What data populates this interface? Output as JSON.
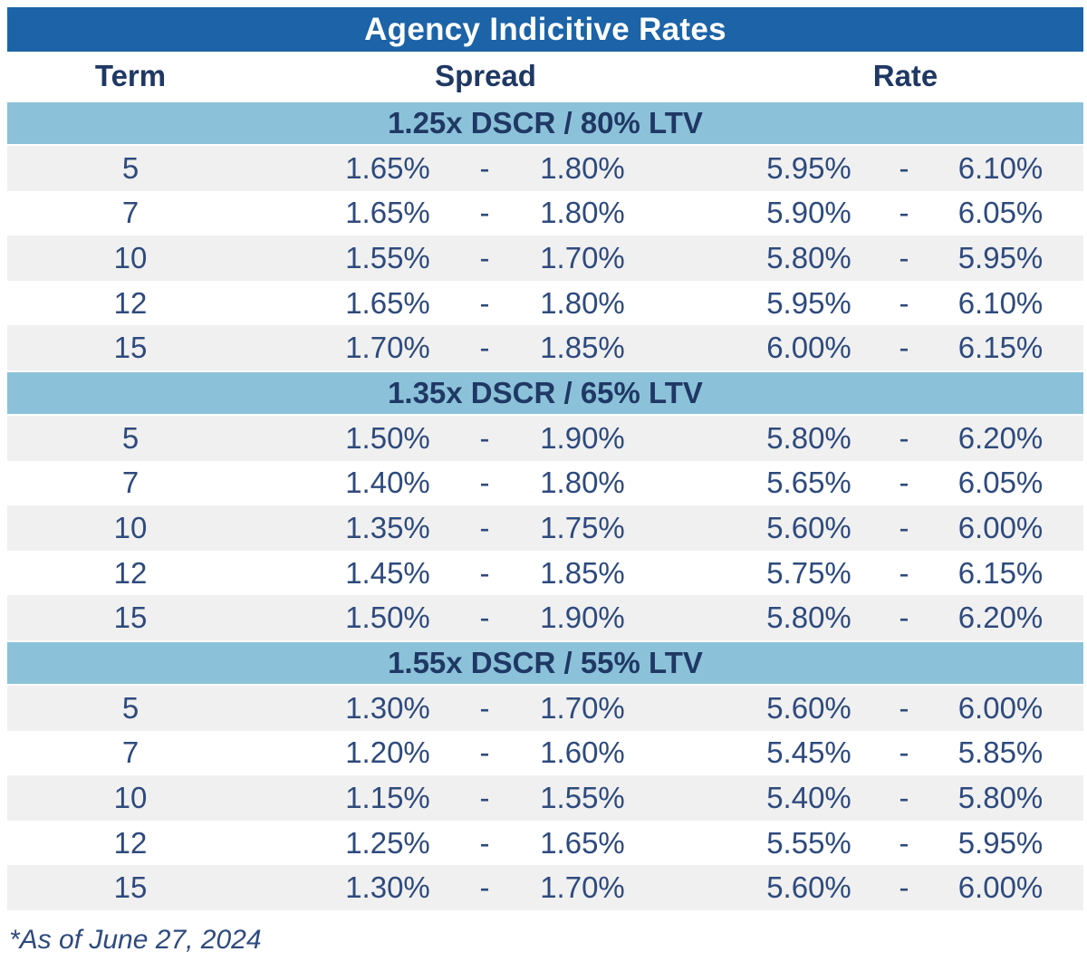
{
  "chart_data": {
    "type": "table",
    "title": "Agency Indicitive Rates",
    "columns": {
      "term": "Term",
      "spread": "Spread",
      "rate": "Rate"
    },
    "range_separator": "-",
    "footnote": "*As of June 27, 2024",
    "sections": [
      {
        "header": "1.25x DSCR / 80% LTV",
        "rows": [
          {
            "term": "5",
            "spread_min": "1.65%",
            "spread_max": "1.80%",
            "rate_min": "5.95%",
            "rate_max": "6.10%"
          },
          {
            "term": "7",
            "spread_min": "1.65%",
            "spread_max": "1.80%",
            "rate_min": "5.90%",
            "rate_max": "6.05%"
          },
          {
            "term": "10",
            "spread_min": "1.55%",
            "spread_max": "1.70%",
            "rate_min": "5.80%",
            "rate_max": "5.95%"
          },
          {
            "term": "12",
            "spread_min": "1.65%",
            "spread_max": "1.80%",
            "rate_min": "5.95%",
            "rate_max": "6.10%"
          },
          {
            "term": "15",
            "spread_min": "1.70%",
            "spread_max": "1.85%",
            "rate_min": "6.00%",
            "rate_max": "6.15%"
          }
        ]
      },
      {
        "header": "1.35x DSCR / 65% LTV",
        "rows": [
          {
            "term": "5",
            "spread_min": "1.50%",
            "spread_max": "1.90%",
            "rate_min": "5.80%",
            "rate_max": "6.20%"
          },
          {
            "term": "7",
            "spread_min": "1.40%",
            "spread_max": "1.80%",
            "rate_min": "5.65%",
            "rate_max": "6.05%"
          },
          {
            "term": "10",
            "spread_min": "1.35%",
            "spread_max": "1.75%",
            "rate_min": "5.60%",
            "rate_max": "6.00%"
          },
          {
            "term": "12",
            "spread_min": "1.45%",
            "spread_max": "1.85%",
            "rate_min": "5.75%",
            "rate_max": "6.15%"
          },
          {
            "term": "15",
            "spread_min": "1.50%",
            "spread_max": "1.90%",
            "rate_min": "5.80%",
            "rate_max": "6.20%"
          }
        ]
      },
      {
        "header": "1.55x DSCR / 55% LTV",
        "rows": [
          {
            "term": "5",
            "spread_min": "1.30%",
            "spread_max": "1.70%",
            "rate_min": "5.60%",
            "rate_max": "6.00%"
          },
          {
            "term": "7",
            "spread_min": "1.20%",
            "spread_max": "1.60%",
            "rate_min": "5.45%",
            "rate_max": "5.85%"
          },
          {
            "term": "10",
            "spread_min": "1.15%",
            "spread_max": "1.55%",
            "rate_min": "5.40%",
            "rate_max": "5.80%"
          },
          {
            "term": "12",
            "spread_min": "1.25%",
            "spread_max": "1.65%",
            "rate_min": "5.55%",
            "rate_max": "5.95%"
          },
          {
            "term": "15",
            "spread_min": "1.30%",
            "spread_max": "1.70%",
            "rate_min": "5.60%",
            "rate_max": "6.00%"
          }
        ]
      }
    ]
  },
  "colors": {
    "title_bar_bg": "#1C63A8",
    "title_text": "#FFFFFF",
    "section_header_bg": "#8CC2D9",
    "alt_row_bg": "#F0F0F0",
    "header_text": "#1F3864",
    "data_text": "#2E4A7D"
  }
}
